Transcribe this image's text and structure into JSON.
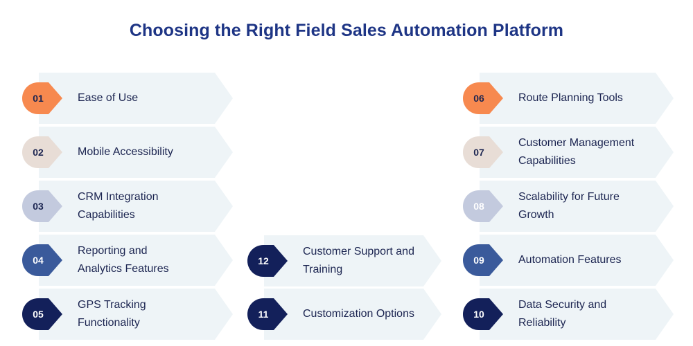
{
  "title": "Choosing the Right Field Sales Automation Platform",
  "items": [
    {
      "num": "01",
      "label": "Ease of Use",
      "color": "#f7894f",
      "text_color": "#1b2450"
    },
    {
      "num": "02",
      "label": "Mobile Accessibility",
      "color": "#e8ddd6",
      "text_color": "#1b2450"
    },
    {
      "num": "03",
      "label": "CRM Integration\nCapabilities",
      "color": "#c3cade",
      "text_color": "#1b2450"
    },
    {
      "num": "04",
      "label": "Reporting and\nAnalytics Features",
      "color": "#3a5a9b",
      "text_color": "#ffffff"
    },
    {
      "num": "05",
      "label": "GPS Tracking\nFunctionality",
      "color": "#13205a",
      "text_color": "#ffffff"
    },
    {
      "num": "06",
      "label": "Route Planning Tools",
      "color": "#f7894f",
      "text_color": "#1b2450"
    },
    {
      "num": "07",
      "label": "Customer Management\nCapabilities",
      "color": "#e8ddd6",
      "text_color": "#1b2450"
    },
    {
      "num": "08",
      "label": "Scalability for Future\nGrowth",
      "color": "#c3cade",
      "text_color": "#ffffff"
    },
    {
      "num": "09",
      "label": "Automation Features",
      "color": "#3a5a9b",
      "text_color": "#ffffff"
    },
    {
      "num": "10",
      "label": "Data Security and\nReliability",
      "color": "#13205a",
      "text_color": "#ffffff"
    },
    {
      "num": "11",
      "label": "Customization Options",
      "color": "#13205a",
      "text_color": "#ffffff"
    },
    {
      "num": "12",
      "label": "Customer Support and\nTraining",
      "color": "#13205a",
      "text_color": "#ffffff"
    }
  ]
}
